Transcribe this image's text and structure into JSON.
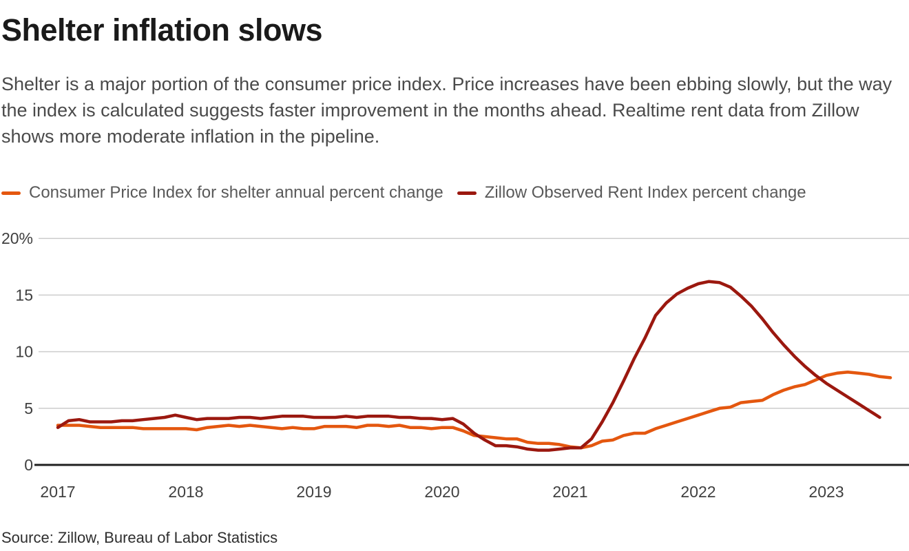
{
  "header": {
    "title": "Shelter inflation slows",
    "description": "Shelter is a major portion of the consumer price index. Price increases have been ebbing slowly, but the way the index is calculated suggests faster improvement in the months ahead. Realtime rent data from Zillow shows more moderate inflation in the pipeline."
  },
  "source": "Source: Zillow, Bureau of Labor Statistics",
  "colors": {
    "cpi_line": "#E4570F",
    "zori_line": "#9B180F",
    "gridline": "#cccccc",
    "zero_axis": "#1f1f1f",
    "axis_text": "#404040"
  },
  "chart_data": {
    "type": "line",
    "title": "Shelter inflation slows",
    "xlabel": "",
    "ylabel": "annual percent change",
    "x_start": "2017-01",
    "x_interval": "month",
    "x_tick_labels": [
      "2017",
      "2018",
      "2019",
      "2020",
      "2021",
      "2022",
      "2023"
    ],
    "y_ticks": [
      0,
      5,
      10,
      15,
      20
    ],
    "y_tick_labels": [
      "0",
      "5",
      "10",
      "15",
      "20%"
    ],
    "ylim": [
      0,
      20
    ],
    "grid": "horizontal",
    "legend_position": "top",
    "series": [
      {
        "name": "Consumer Price Index for shelter annual percent change",
        "color": "#E4570F",
        "start_month": "2017-01",
        "end_month": "2023-07",
        "values": [
          3.5,
          3.5,
          3.5,
          3.4,
          3.3,
          3.3,
          3.3,
          3.3,
          3.2,
          3.2,
          3.2,
          3.2,
          3.2,
          3.1,
          3.3,
          3.4,
          3.5,
          3.4,
          3.5,
          3.4,
          3.3,
          3.2,
          3.3,
          3.2,
          3.2,
          3.4,
          3.4,
          3.4,
          3.3,
          3.5,
          3.5,
          3.4,
          3.5,
          3.3,
          3.3,
          3.2,
          3.3,
          3.3,
          3.0,
          2.6,
          2.5,
          2.4,
          2.3,
          2.3,
          2.0,
          1.9,
          1.9,
          1.8,
          1.6,
          1.5,
          1.7,
          2.1,
          2.2,
          2.6,
          2.8,
          2.8,
          3.2,
          3.5,
          3.8,
          4.1,
          4.4,
          4.7,
          5.0,
          5.1,
          5.5,
          5.6,
          5.7,
          6.2,
          6.6,
          6.9,
          7.1,
          7.5,
          7.9,
          8.1,
          8.2,
          8.1,
          8.0,
          7.8,
          7.7
        ]
      },
      {
        "name": "Zillow Observed Rent Index percent change",
        "color": "#9B180F",
        "start_month": "2017-01",
        "end_month": "2023-06",
        "values": [
          3.3,
          3.9,
          4.0,
          3.8,
          3.8,
          3.8,
          3.9,
          3.9,
          4.0,
          4.1,
          4.2,
          4.4,
          4.2,
          4.0,
          4.1,
          4.1,
          4.1,
          4.2,
          4.2,
          4.1,
          4.2,
          4.3,
          4.3,
          4.3,
          4.2,
          4.2,
          4.2,
          4.3,
          4.2,
          4.3,
          4.3,
          4.3,
          4.2,
          4.2,
          4.1,
          4.1,
          4.0,
          4.1,
          3.6,
          2.8,
          2.2,
          1.7,
          1.7,
          1.6,
          1.4,
          1.3,
          1.3,
          1.4,
          1.5,
          1.5,
          2.3,
          3.8,
          5.5,
          7.4,
          9.4,
          11.2,
          13.2,
          14.3,
          15.1,
          15.6,
          16.0,
          16.2,
          16.1,
          15.7,
          14.9,
          14.0,
          12.9,
          11.7,
          10.6,
          9.6,
          8.7,
          7.9,
          7.2,
          6.6,
          6.0,
          5.4,
          4.8,
          4.2
        ]
      }
    ]
  }
}
